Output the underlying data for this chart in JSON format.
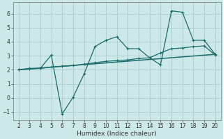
{
  "xlabel": "Humidex (Indice chaleur)",
  "xlim": [
    1.5,
    20.5
  ],
  "ylim": [
    -1.6,
    6.8
  ],
  "xticks": [
    2,
    3,
    4,
    5,
    6,
    7,
    8,
    9,
    10,
    11,
    12,
    13,
    14,
    15,
    16,
    17,
    18,
    19,
    20
  ],
  "yticks": [
    -1,
    0,
    1,
    2,
    3,
    4,
    5,
    6
  ],
  "bg_color": "#cce8e8",
  "grid_color": "#aacccc",
  "line_color": "#1a6b6b",
  "line1_x": [
    2,
    3,
    4,
    5,
    6,
    7,
    8,
    9,
    10,
    11,
    12,
    13,
    14,
    15,
    16,
    17,
    18,
    19,
    20
  ],
  "line1_y": [
    2.0,
    2.05,
    2.1,
    3.05,
    -1.15,
    0.05,
    1.7,
    3.65,
    4.1,
    4.35,
    3.5,
    3.5,
    2.85,
    2.35,
    6.2,
    6.1,
    4.1,
    4.1,
    3.1
  ],
  "line2_x": [
    2,
    3,
    4,
    5,
    6,
    7,
    8,
    9,
    10,
    11,
    12,
    13,
    14,
    15,
    16,
    17,
    18,
    19,
    20
  ],
  "line2_y": [
    2.0,
    2.1,
    2.1,
    2.2,
    2.25,
    2.3,
    2.4,
    2.5,
    2.6,
    2.65,
    2.7,
    2.8,
    2.85,
    3.2,
    3.5,
    3.55,
    3.65,
    3.7,
    3.05
  ],
  "trend_x": [
    2,
    20
  ],
  "trend_y": [
    2.0,
    3.1
  ],
  "tick_fontsize": 5.5,
  "xlabel_fontsize": 6.5,
  "marker_size": 3,
  "linewidth": 0.9
}
